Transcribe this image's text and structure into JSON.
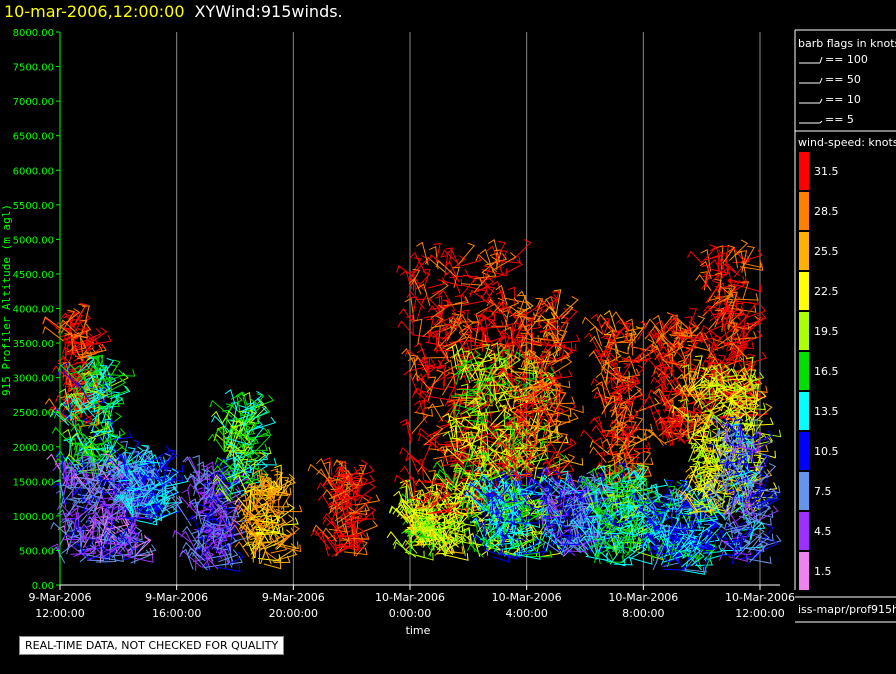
{
  "header": {
    "datetime": "10-mar-2006,12:00:00",
    "product": "XYWind:915winds."
  },
  "footer": {
    "quality_note": "REAL-TIME DATA, NOT CHECKED FOR QUALITY",
    "source": "iss-mapr/prof915h"
  },
  "legend": {
    "barb_title": "barb flags in knots",
    "barb_entries": [
      "== 100",
      "== 50",
      "== 10",
      "== 5"
    ],
    "speed_title": "wind-speed: knots",
    "speed_levels": [
      {
        "label": "31.5",
        "color": "#ff0000"
      },
      {
        "label": "28.5",
        "color": "#ff8000"
      },
      {
        "label": "25.5",
        "color": "#ffb000"
      },
      {
        "label": "22.5",
        "color": "#ffff00"
      },
      {
        "label": "19.5",
        "color": "#aaff00"
      },
      {
        "label": "16.5",
        "color": "#00e000"
      },
      {
        "label": "13.5",
        "color": "#00ffff"
      },
      {
        "label": "10.5",
        "color": "#0000ff"
      },
      {
        "label": "7.5",
        "color": "#6495ed"
      },
      {
        "label": "4.5",
        "color": "#9b30ff"
      },
      {
        "label": "1.5",
        "color": "#ee82ee"
      }
    ]
  },
  "chart_data": {
    "type": "scatter",
    "xlabel": "time",
    "ylabel": "915 Profiler Altitude (m agl)",
    "x_ticks": [
      {
        "line1": "9-Mar-2006",
        "line2": "12:00:00",
        "hours": 0
      },
      {
        "line1": "9-Mar-2006",
        "line2": "16:00:00",
        "hours": 4
      },
      {
        "line1": "9-Mar-2006",
        "line2": "20:00:00",
        "hours": 8
      },
      {
        "line1": "10-Mar-2006",
        "line2": "0:00:00",
        "hours": 12
      },
      {
        "line1": "10-Mar-2006",
        "line2": "4:00:00",
        "hours": 16
      },
      {
        "line1": "10-Mar-2006",
        "line2": "8:00:00",
        "hours": 20
      },
      {
        "line1": "10-Mar-2006",
        "line2": "12:00:00",
        "hours": 24
      }
    ],
    "y_ticks": [
      "0.00",
      "500.00",
      "1000.00",
      "1500.00",
      "2000.00",
      "2500.00",
      "3000.00",
      "3500.00",
      "4000.00",
      "4500.00",
      "5000.00",
      "5500.00",
      "6000.00",
      "6500.00",
      "7000.00",
      "7500.00",
      "8000.00"
    ],
    "ylim": [
      0,
      8000
    ],
    "xlim_hours": [
      0,
      24
    ],
    "grid": "vertical",
    "clusters": [
      {
        "t_start": 0.0,
        "t_end": 0.9,
        "h_low": 2200,
        "h_high": 3800,
        "speed": 31
      },
      {
        "t_start": 0.3,
        "t_end": 1.8,
        "h_low": 1600,
        "h_high": 3100,
        "speed": 15
      },
      {
        "t_start": 0.0,
        "t_end": 2.6,
        "h_low": 300,
        "h_high": 1600,
        "speed": 6
      },
      {
        "t_start": 2.0,
        "t_end": 3.6,
        "h_low": 900,
        "h_high": 1800,
        "speed": 11
      },
      {
        "t_start": 4.5,
        "t_end": 6.0,
        "h_low": 200,
        "h_high": 1600,
        "speed": 7
      },
      {
        "t_start": 5.6,
        "t_end": 6.6,
        "h_low": 1200,
        "h_high": 2600,
        "speed": 17
      },
      {
        "t_start": 6.4,
        "t_end": 7.6,
        "h_low": 300,
        "h_high": 1400,
        "speed": 26
      },
      {
        "t_start": 9.2,
        "t_end": 10.2,
        "h_low": 400,
        "h_high": 1600,
        "speed": 31
      },
      {
        "t_start": 11.8,
        "t_end": 13.5,
        "h_low": 400,
        "h_high": 1200,
        "speed": 21
      },
      {
        "t_start": 12.0,
        "t_end": 15.6,
        "h_low": 1000,
        "h_high": 4700,
        "speed": 31
      },
      {
        "t_start": 13.4,
        "t_end": 16.6,
        "h_low": 400,
        "h_high": 3200,
        "speed": 20
      },
      {
        "t_start": 14.5,
        "t_end": 16.0,
        "h_low": 400,
        "h_high": 1400,
        "speed": 13
      },
      {
        "t_start": 15.5,
        "t_end": 17.2,
        "h_low": 1500,
        "h_high": 4000,
        "speed": 30
      },
      {
        "t_start": 16.5,
        "t_end": 18.5,
        "h_low": 400,
        "h_high": 1400,
        "speed": 9
      },
      {
        "t_start": 18.5,
        "t_end": 19.8,
        "h_low": 1400,
        "h_high": 3700,
        "speed": 30
      },
      {
        "t_start": 18.3,
        "t_end": 20.2,
        "h_low": 300,
        "h_high": 1500,
        "speed": 15
      },
      {
        "t_start": 20.5,
        "t_end": 21.7,
        "h_low": 2000,
        "h_high": 3700,
        "speed": 31
      },
      {
        "t_start": 20.3,
        "t_end": 22.2,
        "h_low": 200,
        "h_high": 1300,
        "speed": 12
      },
      {
        "t_start": 22.0,
        "t_end": 23.6,
        "h_low": 2300,
        "h_high": 4700,
        "speed": 31
      },
      {
        "t_start": 21.5,
        "t_end": 23.9,
        "h_low": 1000,
        "h_high": 3000,
        "speed": 22
      },
      {
        "t_start": 22.6,
        "t_end": 24.0,
        "h_low": 300,
        "h_high": 2200,
        "speed": 9
      }
    ]
  }
}
